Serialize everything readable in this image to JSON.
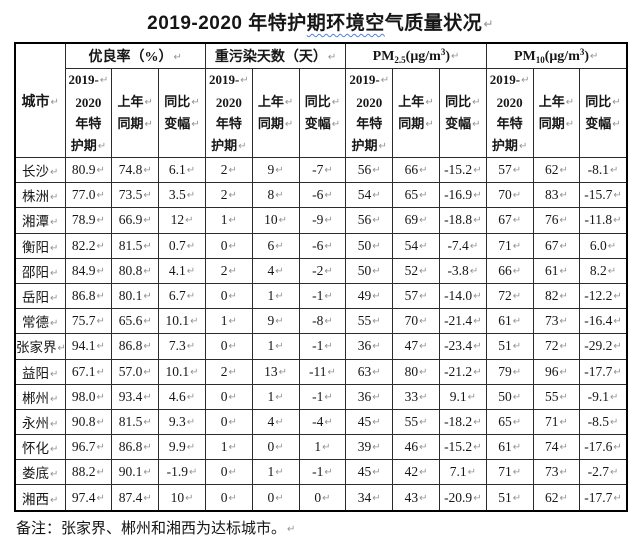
{
  "title": {
    "pre": "2019-2020 年特护",
    "wavy": "期环境空",
    "post": "气质量状况"
  },
  "marks": {
    "ret": "↵"
  },
  "table": {
    "corner_header": "城市",
    "groups": [
      {
        "name": "excellent-rate",
        "parts": [
          {
            "t": "优良率（%）"
          }
        ]
      },
      {
        "name": "heavy-pollution-days",
        "parts": [
          {
            "t": "重污染天数（天）"
          }
        ]
      },
      {
        "name": "pm25",
        "parts": [
          {
            "t": "PM"
          },
          {
            "t": "2.5",
            "s": "sub"
          },
          {
            "t": "(μg/m"
          },
          {
            "t": "3",
            "s": "sup"
          },
          {
            "t": ")"
          }
        ]
      },
      {
        "name": "pm10",
        "parts": [
          {
            "t": "PM"
          },
          {
            "t": "10",
            "s": "sub"
          },
          {
            "t": "(μg/m"
          },
          {
            "t": "3",
            "s": "sup"
          },
          {
            "t": ")"
          }
        ]
      }
    ],
    "sub_headers": [
      {
        "name": "special-period",
        "lines": [
          {
            "t": "2019-",
            "r": true
          },
          {
            "t": "2020",
            "r": false
          },
          {
            "t": "年特",
            "r": false
          },
          {
            "t": "护期",
            "r": true
          }
        ]
      },
      {
        "name": "prev-year-period",
        "lines": [
          {
            "t": "上年",
            "r": true
          },
          {
            "t": "同期",
            "r": true
          }
        ]
      },
      {
        "name": "yoy-change",
        "lines": [
          {
            "t": "同比",
            "r": true
          },
          {
            "t": "变幅",
            "r": true
          }
        ]
      }
    ],
    "rows": [
      {
        "city": "长沙",
        "values": [
          "80.9",
          "74.8",
          "6.1",
          "2",
          "9",
          "-7",
          "56",
          "66",
          "-15.2",
          "57",
          "62",
          "-8.1"
        ]
      },
      {
        "city": "株洲",
        "values": [
          "77.0",
          "73.5",
          "3.5",
          "2",
          "8",
          "-6",
          "54",
          "65",
          "-16.9",
          "70",
          "83",
          "-15.7"
        ]
      },
      {
        "city": "湘潭",
        "values": [
          "78.9",
          "66.9",
          "12",
          "1",
          "10",
          "-9",
          "56",
          "69",
          "-18.8",
          "67",
          "76",
          "-11.8"
        ]
      },
      {
        "city": "衡阳",
        "values": [
          "82.2",
          "81.5",
          "0.7",
          "0",
          "6",
          "-6",
          "50",
          "54",
          "-7.4",
          "71",
          "67",
          "6.0"
        ]
      },
      {
        "city": "邵阳",
        "values": [
          "84.9",
          "80.8",
          "4.1",
          "2",
          "4",
          "-2",
          "50",
          "52",
          "-3.8",
          "66",
          "61",
          "8.2"
        ]
      },
      {
        "city": "岳阳",
        "values": [
          "86.8",
          "80.1",
          "6.7",
          "0",
          "1",
          "-1",
          "49",
          "57",
          "-14.0",
          "72",
          "82",
          "-12.2"
        ]
      },
      {
        "city": "常德",
        "values": [
          "75.7",
          "65.6",
          "10.1",
          "1",
          "9",
          "-8",
          "55",
          "70",
          "-21.4",
          "61",
          "73",
          "-16.4"
        ]
      },
      {
        "city": "张家界",
        "values": [
          "94.1",
          "86.8",
          "7.3",
          "0",
          "1",
          "-1",
          "36",
          "47",
          "-23.4",
          "51",
          "72",
          "-29.2"
        ]
      },
      {
        "city": "益阳",
        "values": [
          "67.1",
          "57.0",
          "10.1",
          "2",
          "13",
          "-11",
          "63",
          "80",
          "-21.2",
          "79",
          "96",
          "-17.7"
        ]
      },
      {
        "city": "郴州",
        "values": [
          "98.0",
          "93.4",
          "4.6",
          "0",
          "1",
          "-1",
          "36",
          "33",
          "9.1",
          "50",
          "55",
          "-9.1"
        ]
      },
      {
        "city": "永州",
        "values": [
          "90.8",
          "81.5",
          "9.3",
          "0",
          "4",
          "-4",
          "45",
          "55",
          "-18.2",
          "65",
          "71",
          "-8.5"
        ]
      },
      {
        "city": "怀化",
        "values": [
          "96.7",
          "86.8",
          "9.9",
          "1",
          "0",
          "1",
          "39",
          "46",
          "-15.2",
          "61",
          "74",
          "-17.6"
        ]
      },
      {
        "city": "娄底",
        "values": [
          "88.2",
          "90.1",
          "-1.9",
          "0",
          "1",
          "-1",
          "45",
          "42",
          "7.1",
          "71",
          "73",
          "-2.7"
        ]
      },
      {
        "city": "湘西",
        "values": [
          "97.4",
          "87.4",
          "10",
          "0",
          "0",
          "0",
          "34",
          "43",
          "-20.9",
          "51",
          "62",
          "-17.7"
        ]
      }
    ]
  },
  "footnote": {
    "text": "备注：张家界、郴州和湘西为达标城市。"
  },
  "colors": {
    "text": "#161616",
    "border": "#2b2b2b",
    "paragraph_mark": "#8e949c",
    "wavy_underline": "#4f81d8"
  }
}
